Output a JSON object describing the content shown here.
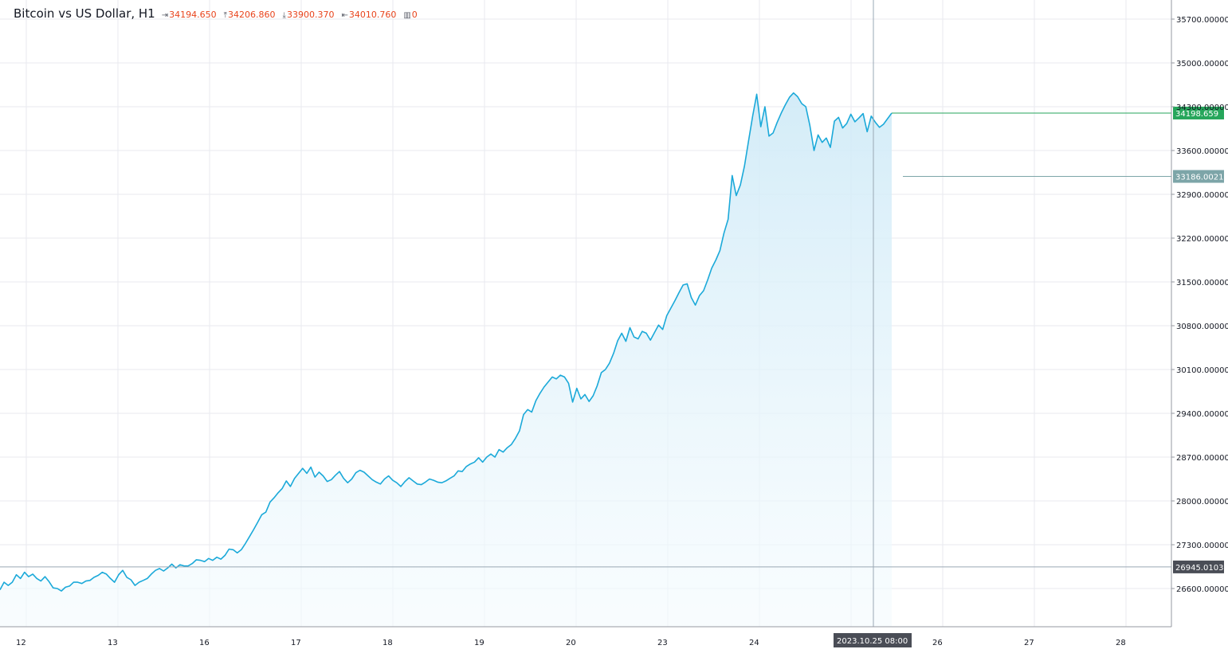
{
  "header": {
    "symbol": "Bitcoin vs US Dollar, H1",
    "open": "34194.650",
    "high": "34206.860",
    "low": "33900.370",
    "close": "34010.760",
    "volume": "0",
    "icons": {
      "open": "open-arrow-icon",
      "high": "high-arrow-icon",
      "low": "low-arrow-icon",
      "close": "close-arrow-icon",
      "volume": "volume-bars-icon"
    }
  },
  "colors": {
    "line": "#1ba9d9",
    "fill_top": "#cfeaf7",
    "fill_bottom": "#f4fbfe",
    "grid": "#e8eaef",
    "price_tag_current": "#26a65b",
    "price_tag_level": "#7da5a8",
    "price_tag_crosshair": "#4a4d56",
    "ohlc_text": "#e8441c"
  },
  "chart_data": {
    "type": "area",
    "title": "Bitcoin vs US Dollar, H1",
    "ylim": [
      26000,
      36000
    ],
    "grid": true,
    "x_ticks": [
      "12",
      "13",
      "16",
      "17",
      "18",
      "19",
      "20",
      "23",
      "24",
      "25",
      "26",
      "27",
      "28"
    ],
    "y_ticks": [
      "35700.00000",
      "35000.00000",
      "34300.00000",
      "33600.00000",
      "32900.00000",
      "32200.00000",
      "31500.00000",
      "30800.00000",
      "30100.00000",
      "29400.00000",
      "28700.00000",
      "28000.00000",
      "27300.00000",
      "26600.00000"
    ],
    "series": [
      {
        "values": [
          26580,
          26700,
          26650,
          26700,
          26820,
          26760,
          26860,
          26790,
          26830,
          26760,
          26720,
          26790,
          26710,
          26610,
          26600,
          26560,
          26620,
          26640,
          26700,
          26700,
          26680,
          26720,
          26730,
          26780,
          26810,
          26860,
          26830,
          26760,
          26700,
          26820,
          26890,
          26780,
          26740,
          26650,
          26700,
          26730,
          26760,
          26830,
          26890,
          26920,
          26880,
          26930,
          26990,
          26930,
          26980,
          26960,
          26960,
          27000,
          27060,
          27050,
          27030,
          27080,
          27050,
          27100,
          27070,
          27130,
          27230,
          27220,
          27170,
          27220,
          27320,
          27430,
          27540,
          27660,
          27780,
          27820,
          27980,
          28050,
          28130,
          28200,
          28320,
          28230,
          28360,
          28440,
          28520,
          28440,
          28540,
          28380,
          28460,
          28400,
          28310,
          28340,
          28410,
          28470,
          28360,
          28290,
          28350,
          28450,
          28490,
          28460,
          28400,
          28340,
          28300,
          28270,
          28350,
          28400,
          28330,
          28290,
          28230,
          28310,
          28370,
          28320,
          28270,
          28260,
          28300,
          28350,
          28330,
          28300,
          28290,
          28320,
          28360,
          28400,
          28480,
          28470,
          28550,
          28590,
          28620,
          28690,
          28620,
          28700,
          28750,
          28700,
          28820,
          28780,
          28850,
          28900,
          29000,
          29120,
          29380,
          29460,
          29420,
          29600,
          29720,
          29820,
          29900,
          29980,
          29950,
          30010,
          29980,
          29880,
          29580,
          29800,
          29630,
          29700,
          29590,
          29680,
          29840,
          30050,
          30100,
          30200,
          30360,
          30560,
          30680,
          30550,
          30770,
          30620,
          30590,
          30710,
          30680,
          30570,
          30690,
          30810,
          30740,
          30960,
          31080,
          31200,
          31330,
          31450,
          31470,
          31250,
          31130,
          31280,
          31360,
          31530,
          31720,
          31850,
          32000,
          32280,
          32500,
          33200,
          32880,
          33050,
          33350,
          33750,
          34150,
          34500,
          33980,
          34300,
          33830,
          33880,
          34050,
          34200,
          34330,
          34450,
          34520,
          34460,
          34350,
          34300,
          34000,
          33600,
          33850,
          33730,
          33800,
          33650,
          34070,
          34130,
          33960,
          34030,
          34180,
          34060,
          34120,
          34190,
          33900,
          34150,
          34050,
          33970,
          34020,
          34110,
          34198
        ]
      }
    ],
    "annotations": {
      "current_price": "34198.659",
      "level_price": "33186.0021",
      "crosshair_price": "26945.0103",
      "crosshair_time": "2023.10.25 08:00"
    }
  }
}
